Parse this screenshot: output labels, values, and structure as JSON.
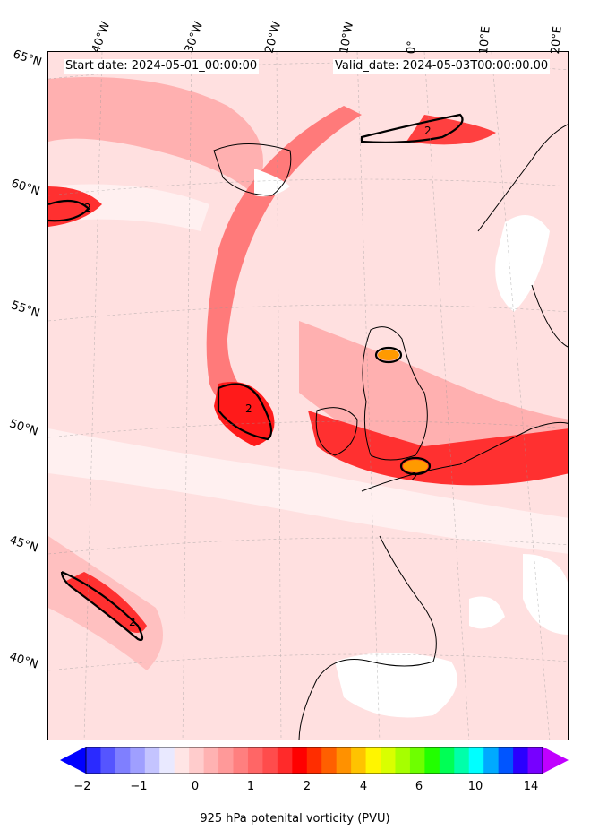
{
  "header": {
    "start_date": "Start date: 2024-05-01_00:00:00",
    "valid_date": "Valid_date: 2024-05-03T00:00:00.00"
  },
  "map": {
    "longitude_labels": [
      "40°W",
      "30°W",
      "20°W",
      "10°W",
      "0°",
      "10°E",
      "20°E"
    ],
    "latitude_labels": [
      "65°N",
      "60°N",
      "55°N",
      "50°N",
      "45°N",
      "40°N"
    ],
    "contour_label": "2"
  },
  "colorbar": {
    "label": "925 hPa potenital vorticity (PVU)",
    "ticks": [
      "−2",
      "−1",
      "0",
      "1",
      "2",
      "4",
      "6",
      "10",
      "14"
    ],
    "colors": [
      "#0000ff",
      "#2a2aff",
      "#5555ff",
      "#7f7fff",
      "#9f9fff",
      "#c4c4ff",
      "#e9e9ff",
      "#ffe5e5",
      "#ffcccc",
      "#ffb2b2",
      "#ff9999",
      "#ff7f7f",
      "#ff6666",
      "#ff4c4c",
      "#ff2a2a",
      "#ff0000",
      "#ff2d00",
      "#ff5f00",
      "#ff9100",
      "#ffc300",
      "#fff500",
      "#d9ff00",
      "#a6ff00",
      "#6eff00",
      "#22ff00",
      "#00ff55",
      "#00ffaa",
      "#00ffff",
      "#00aaff",
      "#0055ff",
      "#2a00ff",
      "#7700ff",
      "#c000ff"
    ]
  }
}
